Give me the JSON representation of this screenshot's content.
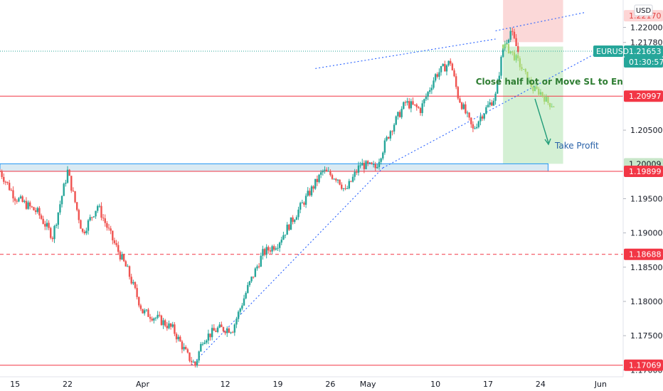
{
  "chart_data": {
    "type": "candlestick",
    "symbol": "EURUSD",
    "currency": "USD",
    "last_price": "1.21653",
    "countdown": "01:30:57",
    "y_range": [
      1.169,
      1.224
    ],
    "y_ticks": [
      "1.22000",
      "1.21780",
      "1.20500",
      "1.19500",
      "1.19000",
      "1.18500",
      "1.18000",
      "1.17500",
      "1.17000"
    ],
    "y_tick_values": [
      1.22,
      1.2178,
      1.205,
      1.195,
      1.19,
      1.185,
      1.18,
      1.175,
      1.17
    ],
    "x_labels": [
      "15",
      "22",
      "Apr",
      "12",
      "19",
      "26",
      "May",
      "10",
      "17",
      "24",
      "Jun"
    ],
    "x_label_days": [
      -17,
      -10,
      0,
      11,
      18,
      25,
      30,
      39,
      46,
      53,
      61
    ],
    "x_range_days": [
      -19,
      64
    ],
    "levels": [
      {
        "label": "1.22170",
        "value": 1.2217,
        "bg": "#fdd5d5",
        "fg": "#e04545"
      },
      {
        "label": "1.21653",
        "value": 1.21653,
        "bg": "#26a69a",
        "fg": "#ffffff"
      },
      {
        "label": "1.20997",
        "value": 1.20997,
        "bg": "#f23645",
        "fg": "#ffffff",
        "line": "solid"
      },
      {
        "label": "1.20009",
        "value": 1.20009,
        "bg": "#c8e6c9",
        "fg": "#131722"
      },
      {
        "label": "1.19899",
        "value": 1.19899,
        "bg": "#f23645",
        "fg": "#ffffff",
        "line": "solid"
      },
      {
        "label": "1.18688",
        "value": 1.18688,
        "bg": "#f23645",
        "fg": "#ffffff",
        "line": "dashed"
      },
      {
        "label": "1.17069",
        "value": 1.17069,
        "bg": "#f23645",
        "fg": "#ffffff",
        "line": "solid"
      }
    ],
    "anchors": [
      {
        "d": -19,
        "p": 1.199
      },
      {
        "d": -17,
        "p": 1.1952
      },
      {
        "d": -14,
        "p": 1.193
      },
      {
        "d": -12,
        "p": 1.1895
      },
      {
        "d": -10,
        "p": 1.199
      },
      {
        "d": -8,
        "p": 1.19
      },
      {
        "d": -6,
        "p": 1.194
      },
      {
        "d": -4,
        "p": 1.189
      },
      {
        "d": -2,
        "p": 1.1845
      },
      {
        "d": 0,
        "p": 1.1785
      },
      {
        "d": 2,
        "p": 1.1775
      },
      {
        "d": 4,
        "p": 1.176
      },
      {
        "d": 6,
        "p": 1.172
      },
      {
        "d": 7,
        "p": 1.1707
      },
      {
        "d": 8,
        "p": 1.1745
      },
      {
        "d": 10,
        "p": 1.176
      },
      {
        "d": 12,
        "p": 1.176
      },
      {
        "d": 14,
        "p": 1.182
      },
      {
        "d": 16,
        "p": 1.187
      },
      {
        "d": 18,
        "p": 1.1885
      },
      {
        "d": 20,
        "p": 1.192
      },
      {
        "d": 22,
        "p": 1.1955
      },
      {
        "d": 24,
        "p": 1.199
      },
      {
        "d": 26,
        "p": 1.198
      },
      {
        "d": 27,
        "p": 1.196
      },
      {
        "d": 29,
        "p": 1.2
      },
      {
        "d": 31,
        "p": 1.1995
      },
      {
        "d": 33,
        "p": 1.205
      },
      {
        "d": 35,
        "p": 1.209
      },
      {
        "d": 37,
        "p": 1.208
      },
      {
        "d": 39,
        "p": 1.213
      },
      {
        "d": 41,
        "p": 1.215
      },
      {
        "d": 42,
        "p": 1.21
      },
      {
        "d": 44,
        "p": 1.205
      },
      {
        "d": 45,
        "p": 1.207
      },
      {
        "d": 47,
        "p": 1.21
      },
      {
        "d": 48,
        "p": 1.217
      },
      {
        "d": 49,
        "p": 1.2195
      },
      {
        "d": 50,
        "p": 1.2165
      }
    ],
    "projection": [
      {
        "d": 48,
        "p": 1.2175
      },
      {
        "d": 49,
        "p": 1.2165
      },
      {
        "d": 50,
        "p": 1.215
      },
      {
        "d": 51,
        "p": 1.213
      },
      {
        "d": 52,
        "p": 1.211
      },
      {
        "d": 53,
        "p": 1.2105
      },
      {
        "d": 54,
        "p": 1.209
      },
      {
        "d": 55,
        "p": 1.2085
      }
    ],
    "trendlines": [
      {
        "from": {
          "d": 6.5,
          "p": 1.1707
        },
        "to": {
          "d": 32,
          "p": 1.1995
        },
        "style": "dotted"
      },
      {
        "from": {
          "d": 32,
          "p": 1.1995
        },
        "to": {
          "d": 60,
          "p": 1.216
        },
        "style": "dotted"
      },
      {
        "from": {
          "d": 23,
          "p": 1.214
        },
        "to": {
          "d": 47,
          "p": 1.2183
        },
        "style": "dotted"
      },
      {
        "from": {
          "d": 47,
          "p": 1.2195
        },
        "to": {
          "d": 59,
          "p": 1.2222
        },
        "style": "dotted"
      }
    ],
    "boxes": {
      "stop_zone": {
        "from_day": 48,
        "to_day": 56,
        "top": 1.2242,
        "bottom": 1.21785,
        "color": "#f7a8a8"
      },
      "profit_zone": {
        "from_day": 48,
        "to_day": 56,
        "top": 1.2172,
        "bottom": 1.20009,
        "color": "#9fdda0"
      },
      "support_zone": {
        "from_day": -19,
        "to_day": 54,
        "top": 1.20009,
        "bottom": 1.19899,
        "color": "#b9d9ea"
      }
    },
    "annotations": {
      "move_sl": "Close half lot or Move SL to Entry",
      "take_profit": "Take Profit"
    }
  }
}
